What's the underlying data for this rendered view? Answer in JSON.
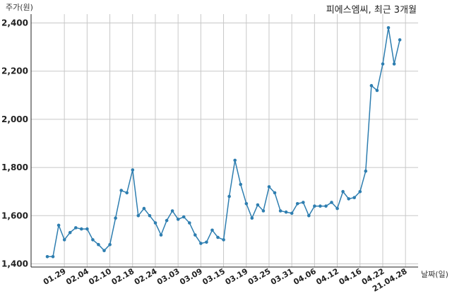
{
  "chart_data": {
    "type": "line",
    "title": "피에스엠씨, 최근 3개월",
    "ylabel": "주가(원)",
    "xlabel": "날짜(일)",
    "ylim": [
      1400,
      2420
    ],
    "yticks": [
      1400,
      1600,
      1800,
      2000,
      2200,
      2400
    ],
    "ytick_labels": [
      "1,400",
      "1,600",
      "1,800",
      "2,000",
      "2,200",
      "2,400"
    ],
    "xticks": [
      {
        "index": 3,
        "label": "01.29"
      },
      {
        "index": 7,
        "label": "02.04"
      },
      {
        "index": 11,
        "label": "02.10"
      },
      {
        "index": 15,
        "label": "02.18"
      },
      {
        "index": 19,
        "label": "02.24"
      },
      {
        "index": 23,
        "label": "03.03"
      },
      {
        "index": 27,
        "label": "03.09"
      },
      {
        "index": 31,
        "label": "03.15"
      },
      {
        "index": 35,
        "label": "03.19"
      },
      {
        "index": 39,
        "label": "03.25"
      },
      {
        "index": 43,
        "label": "03.31"
      },
      {
        "index": 47,
        "label": "04.06"
      },
      {
        "index": 51,
        "label": "04.12"
      },
      {
        "index": 55,
        "label": "04.16"
      },
      {
        "index": 59,
        "label": "04.22"
      },
      {
        "index": 63,
        "label": "21.04.28"
      }
    ],
    "grid": true,
    "color": "#2e7eb0",
    "series": [
      {
        "name": "",
        "values": [
          1430,
          1430,
          1560,
          1500,
          1530,
          1550,
          1545,
          1545,
          1500,
          1480,
          1455,
          1480,
          1590,
          1705,
          1695,
          1790,
          1600,
          1630,
          1600,
          1570,
          1520,
          1580,
          1620,
          1585,
          1595,
          1570,
          1520,
          1485,
          1490,
          1540,
          1510,
          1500,
          1680,
          1830,
          1730,
          1650,
          1590,
          1645,
          1620,
          1720,
          1695,
          1620,
          1615,
          1610,
          1650,
          1655,
          1600,
          1640,
          1640,
          1640,
          1655,
          1630,
          1700,
          1670,
          1675,
          1700,
          1785,
          2140,
          2120,
          2230,
          2380,
          2230,
          2330
        ]
      }
    ]
  }
}
